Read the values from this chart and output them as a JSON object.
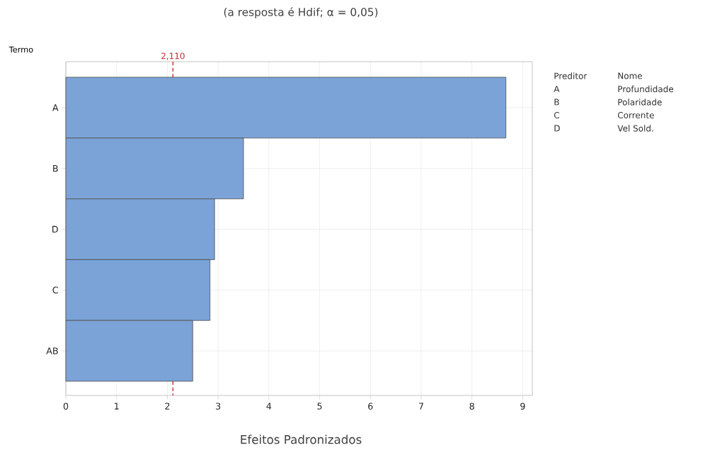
{
  "chart_data": {
    "type": "bar",
    "orientation": "horizontal",
    "title": "(a resposta é  Hdif; α = 0,05)",
    "xlabel": "Efeitos Padronizados",
    "ylabel": "Termo",
    "categories": [
      "A",
      "B",
      "D",
      "C",
      "AB"
    ],
    "values": [
      8.67,
      3.5,
      2.93,
      2.84,
      2.5
    ],
    "color": "#7ba3d7",
    "xlim": [
      0,
      9.19
    ],
    "xticks": [
      0,
      1,
      2,
      3,
      4,
      5,
      6,
      7,
      8,
      9
    ],
    "grid": true,
    "ref_lines": [
      {
        "axis": "x",
        "value": 2.11,
        "label": "2,110",
        "color": "#c8282d",
        "line_style": "dashed"
      }
    ],
    "annotations": [
      "Preditor",
      "Nome",
      "A",
      "Profundidade",
      "B",
      "Polaridade",
      "C",
      "Corrente",
      "D",
      "Vel Sold."
    ]
  }
}
